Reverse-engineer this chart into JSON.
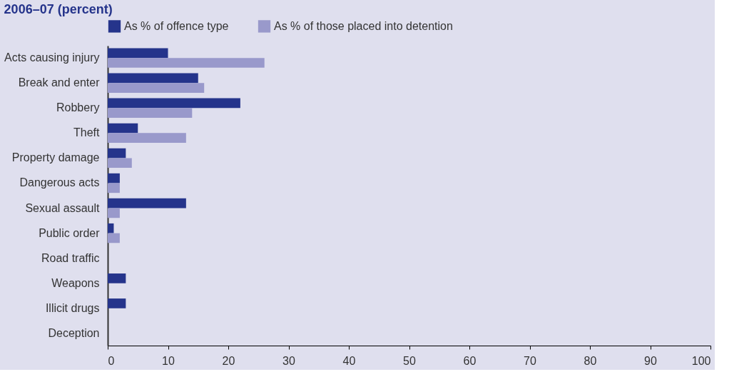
{
  "chart_data": {
    "type": "bar",
    "orientation": "horizontal",
    "title": "2006–07 (percent)",
    "categories": [
      "Acts causing injury",
      "Break and enter",
      "Robbery",
      "Theft",
      "Property damage",
      "Dangerous acts",
      "Sexual assault",
      "Public order",
      "Road traffic",
      "Weapons",
      "Illicit drugs",
      "Deception"
    ],
    "series": [
      {
        "name": "As % of offence type",
        "color": "#25348b",
        "values": [
          10,
          15,
          22,
          5,
          3,
          2,
          13,
          1,
          0,
          3,
          3,
          0
        ]
      },
      {
        "name": "As % of those placed into detention",
        "color": "#9999cb",
        "values": [
          26,
          16,
          14,
          13,
          4,
          2,
          2,
          2,
          0,
          0,
          0,
          0
        ]
      }
    ],
    "xlim": [
      0,
      100
    ],
    "xticks": [
      0,
      10,
      20,
      30,
      40,
      50,
      60,
      70,
      80,
      90,
      100
    ],
    "grid": false,
    "legend": "top"
  }
}
